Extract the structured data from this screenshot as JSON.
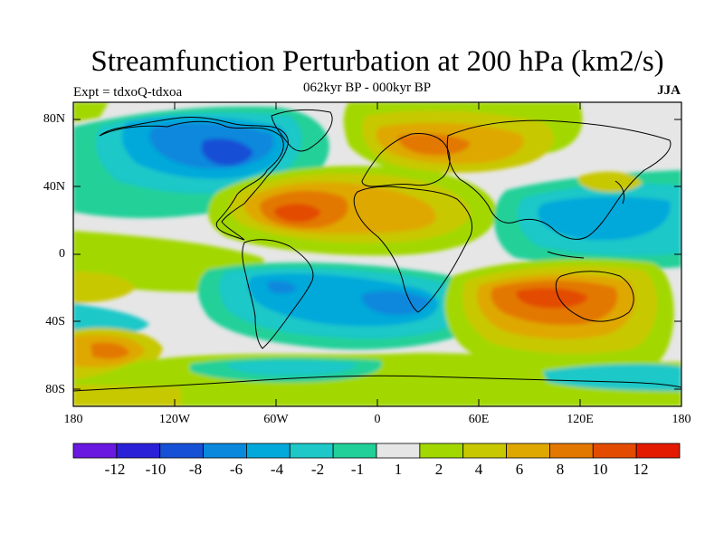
{
  "title": "Streamfunction Perturbation at 200 hPa (km2/s)",
  "experiment_label": "Expt = tdxoQ-tdxoa",
  "period_label": "062kyr BP - 000kyr BP",
  "season_label": "JJA",
  "lat_ticks": [
    "80N",
    "40N",
    "0",
    "40S",
    "80S"
  ],
  "lon_ticks": [
    "180",
    "120W",
    "60W",
    "0",
    "60E",
    "120E",
    "180"
  ],
  "colorbar_labels": [
    "-12",
    "-10",
    "-8",
    "-6",
    "-4",
    "-2",
    "-1",
    "1",
    "2",
    "4",
    "6",
    "8",
    "10",
    "12"
  ],
  "colors": {
    "background_land_neutral": "#e6e6e6",
    "palette": [
      "#6a19e0",
      "#2a20d8",
      "#1650d6",
      "#0a88dc",
      "#00a9da",
      "#1ec8c8",
      "#20d098",
      "#e6e6e6",
      "#a2d800",
      "#c8c800",
      "#dfa800",
      "#e37800",
      "#e34c00",
      "#e31a00"
    ]
  }
}
